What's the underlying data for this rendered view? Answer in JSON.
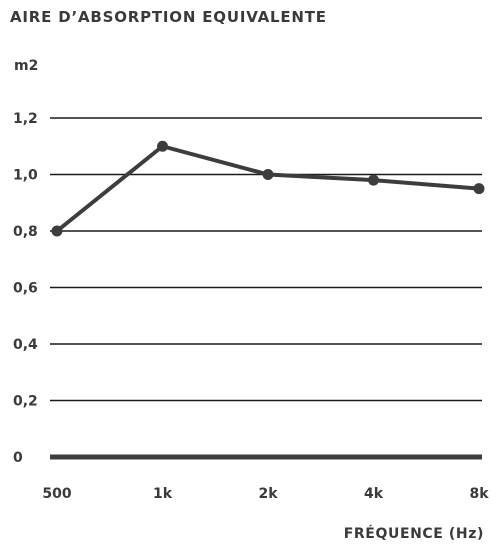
{
  "chart_data": {
    "type": "line",
    "title": "AIRE D’ABSORPTION EQUIVALENTE",
    "ylabel": "m2",
    "xlabel": "FRÉQUENCE (Hz)",
    "categories": [
      "500",
      "1k",
      "2k",
      "4k",
      "8k"
    ],
    "values": [
      0.8,
      1.1,
      1.0,
      0.98,
      0.95
    ],
    "yticks": [
      {
        "value": 0,
        "label": "0"
      },
      {
        "value": 0.2,
        "label": "0,2"
      },
      {
        "value": 0.4,
        "label": "0,4"
      },
      {
        "value": 0.6,
        "label": "0,6"
      },
      {
        "value": 0.8,
        "label": "0,8"
      },
      {
        "value": 1.0,
        "label": "1,0"
      },
      {
        "value": 1.2,
        "label": "1,2"
      }
    ],
    "ylim": [
      0,
      1.2
    ],
    "grid": true,
    "line_color": "#3d3d3d",
    "grid_color": "#1a1a1a"
  }
}
